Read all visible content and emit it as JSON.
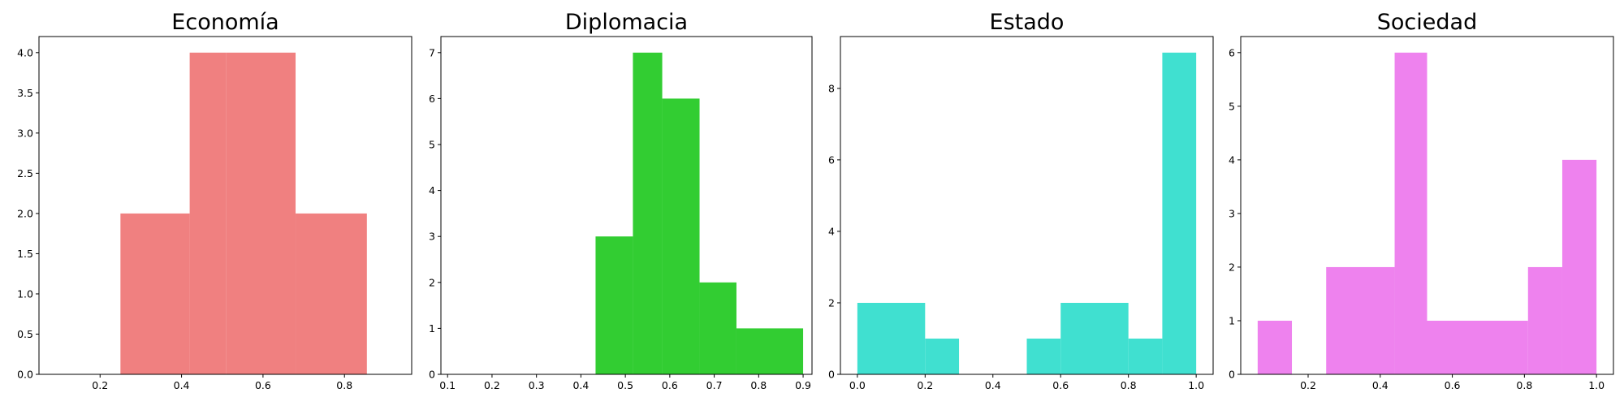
{
  "chart_data": [
    {
      "type": "bar",
      "title": "Economía",
      "color": "#f08080",
      "bins": [
        {
          "x0": 0.25,
          "x1": 0.42,
          "value": 2
        },
        {
          "x0": 0.42,
          "x1": 0.51,
          "value": 4
        },
        {
          "x0": 0.51,
          "x1": 0.68,
          "value": 4
        },
        {
          "x0": 0.68,
          "x1": 0.855,
          "value": 2
        }
      ],
      "xlim": [
        0.05,
        0.965
      ],
      "ylim": [
        0,
        4.2
      ],
      "xticks": [
        "0.2",
        "0.4",
        "0.6",
        "0.8"
      ],
      "yticks": [
        "0.0",
        "0.5",
        "1.0",
        "1.5",
        "2.0",
        "2.5",
        "3.0",
        "3.5",
        "4.0"
      ],
      "grid": false
    },
    {
      "type": "bar",
      "title": "Diplomacia",
      "color": "#32cd32",
      "bins": [
        {
          "x0": 0.433,
          "x1": 0.517,
          "value": 3
        },
        {
          "x0": 0.517,
          "x1": 0.583,
          "value": 7
        },
        {
          "x0": 0.583,
          "x1": 0.667,
          "value": 6
        },
        {
          "x0": 0.667,
          "x1": 0.75,
          "value": 2
        },
        {
          "x0": 0.75,
          "x1": 0.9,
          "value": 1
        }
      ],
      "xlim": [
        0.085,
        0.92
      ],
      "ylim": [
        0,
        7.35
      ],
      "xticks": [
        "0.1",
        "0.2",
        "0.3",
        "0.4",
        "0.5",
        "0.6",
        "0.7",
        "0.8",
        "0.9"
      ],
      "yticks": [
        "0",
        "1",
        "2",
        "3",
        "4",
        "5",
        "6",
        "7"
      ],
      "grid": false
    },
    {
      "type": "bar",
      "title": "Estado",
      "color": "#40e0d0",
      "bins": [
        {
          "x0": 0.0,
          "x1": 0.2,
          "value": 2
        },
        {
          "x0": 0.2,
          "x1": 0.3,
          "value": 1
        },
        {
          "x0": 0.3,
          "x1": 0.5,
          "value": 0
        },
        {
          "x0": 0.5,
          "x1": 0.6,
          "value": 1
        },
        {
          "x0": 0.6,
          "x1": 0.8,
          "value": 2
        },
        {
          "x0": 0.8,
          "x1": 0.9,
          "value": 1
        },
        {
          "x0": 0.9,
          "x1": 1.0,
          "value": 9
        }
      ],
      "xlim": [
        -0.05,
        1.05
      ],
      "ylim": [
        0,
        9.45
      ],
      "xticks": [
        "0.0",
        "0.2",
        "0.4",
        "0.6",
        "0.8",
        "1.0"
      ],
      "yticks": [
        "0",
        "2",
        "4",
        "6",
        "8"
      ],
      "grid": false
    },
    {
      "type": "bar",
      "title": "Sociedad",
      "color": "#ee82ee",
      "bins": [
        {
          "x0": 0.06,
          "x1": 0.155,
          "value": 1
        },
        {
          "x0": 0.155,
          "x1": 0.25,
          "value": 0
        },
        {
          "x0": 0.25,
          "x1": 0.44,
          "value": 2
        },
        {
          "x0": 0.44,
          "x1": 0.53,
          "value": 6
        },
        {
          "x0": 0.53,
          "x1": 0.81,
          "value": 1
        },
        {
          "x0": 0.81,
          "x1": 0.905,
          "value": 2
        },
        {
          "x0": 0.905,
          "x1": 1.0,
          "value": 4
        }
      ],
      "xlim": [
        0.013,
        1.047
      ],
      "ylim": [
        0,
        6.3
      ],
      "xticks": [
        "0.2",
        "0.4",
        "0.6",
        "0.8",
        "1.0"
      ],
      "yticks": [
        "0",
        "1",
        "2",
        "3",
        "4",
        "5",
        "6"
      ],
      "grid": false
    }
  ]
}
